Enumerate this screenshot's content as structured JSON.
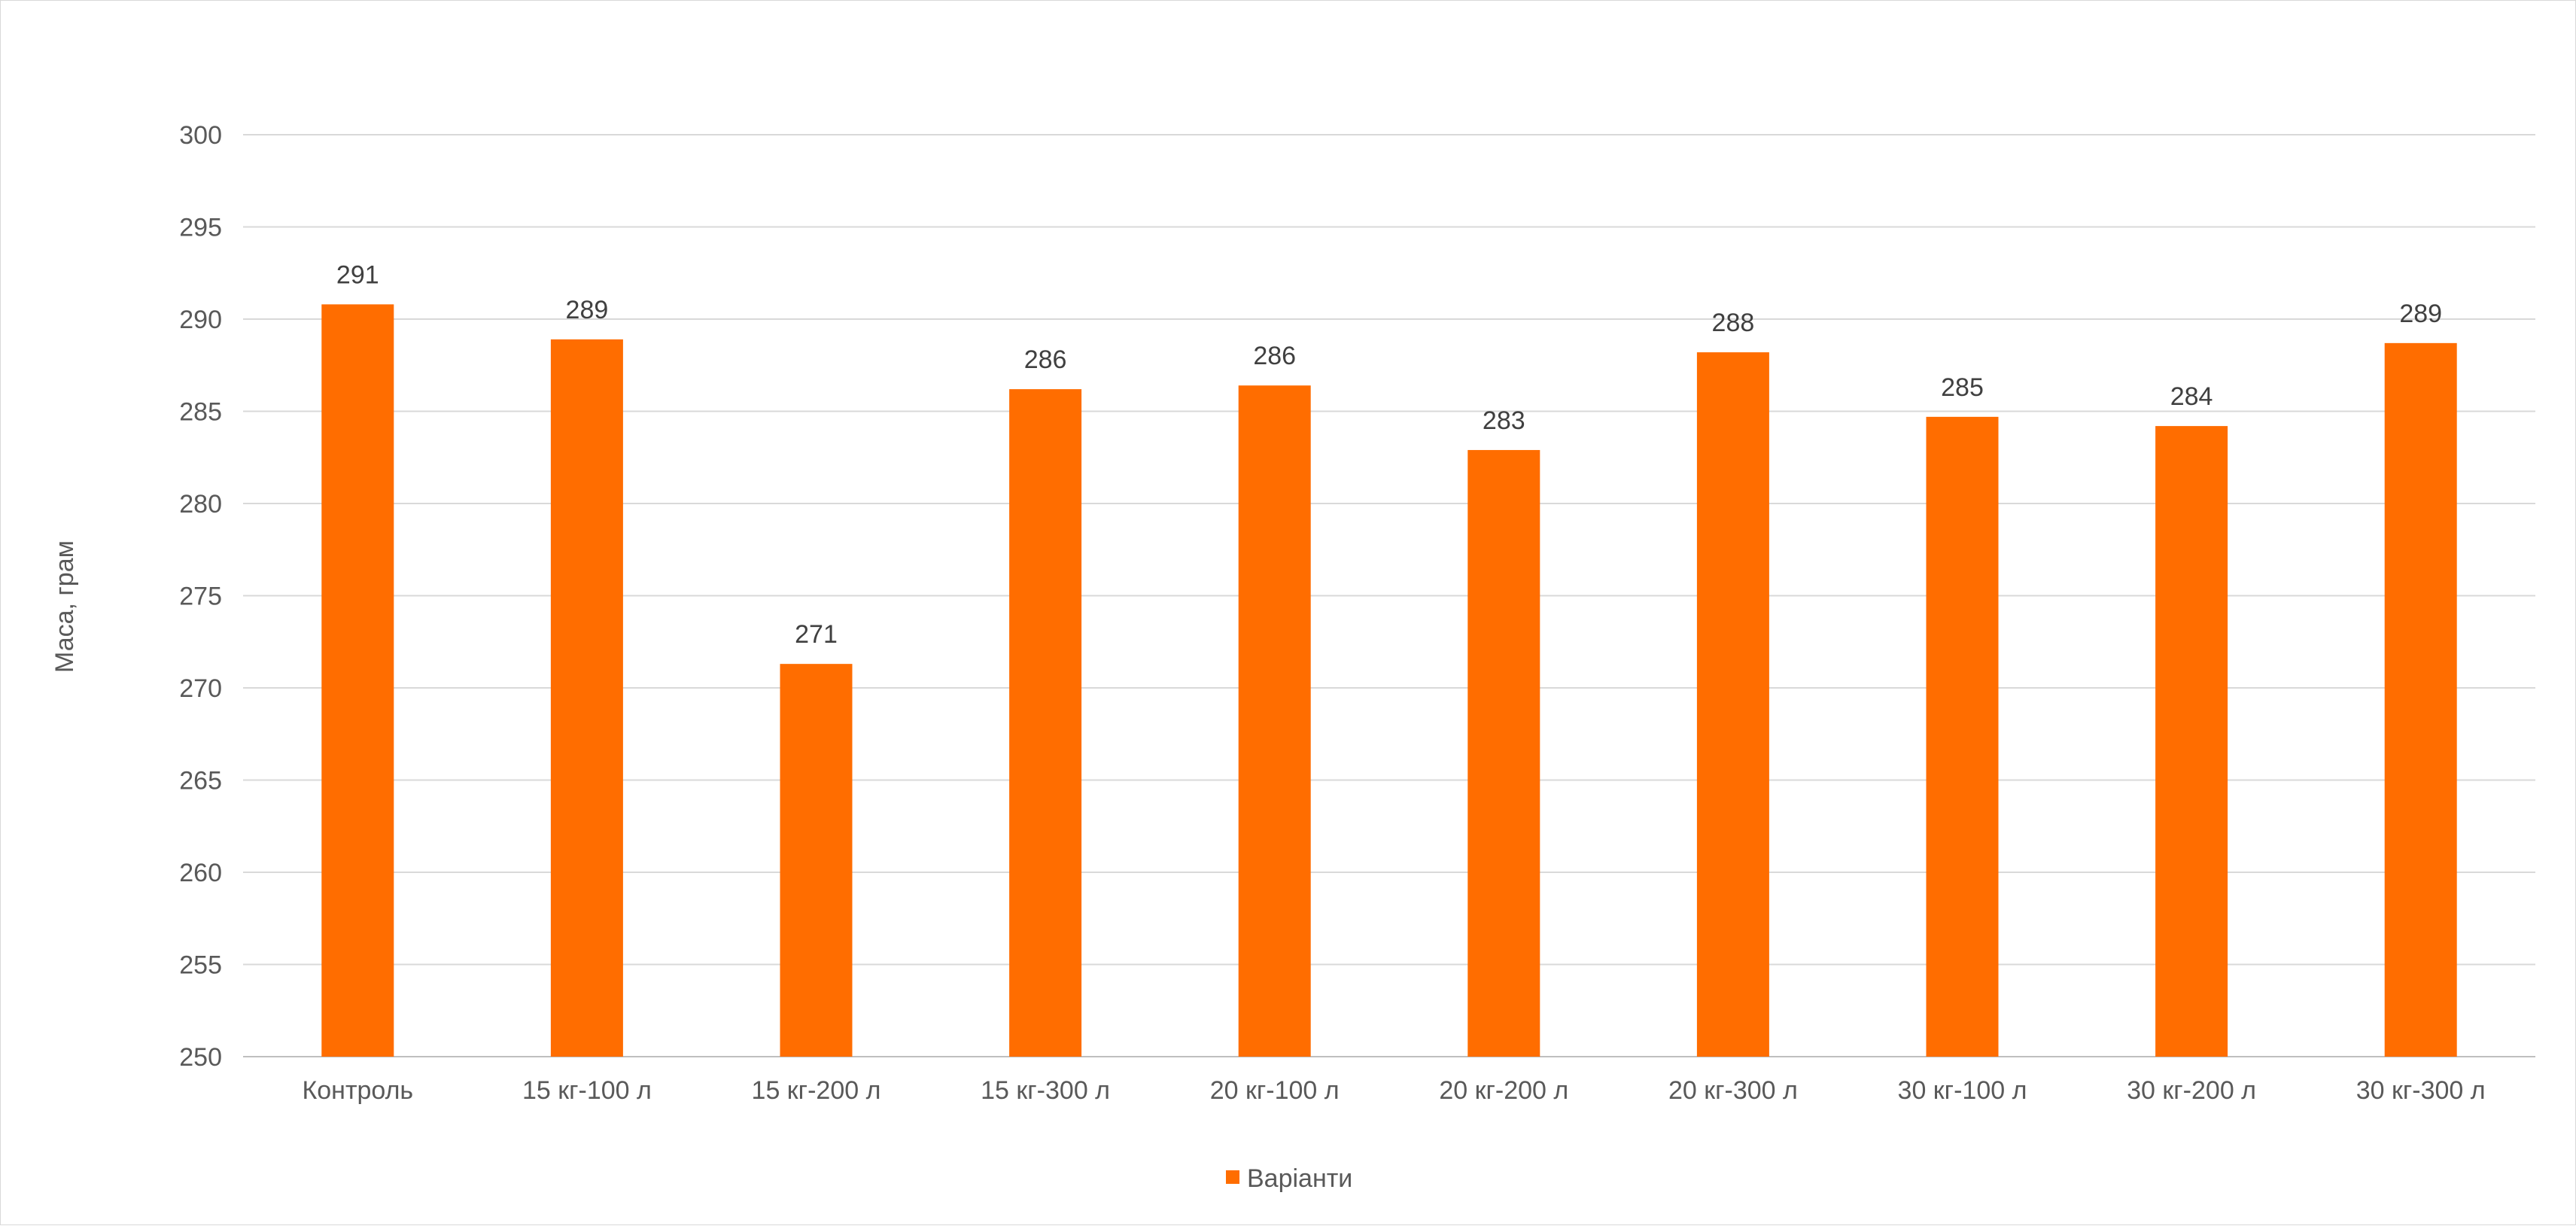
{
  "chart_data": {
    "type": "bar",
    "title": "",
    "xlabel": "",
    "ylabel": "Маса, грам",
    "ylim": [
      250,
      300
    ],
    "yticks": [
      250,
      255,
      260,
      265,
      270,
      275,
      280,
      285,
      290,
      295,
      300
    ],
    "grid": "horizontal",
    "legend_position": "bottom",
    "categories": [
      "Контроль",
      "15 кг-100 л",
      "15 кг-200 л",
      "15 кг-300 л",
      "20 кг-100 л",
      "20 кг-200 л",
      "20 кг-300 л",
      "30 кг-100 л",
      "30 кг-200 л",
      "30 кг-300 л"
    ],
    "series": [
      {
        "name": "Варіанти",
        "color": "#FF6D00",
        "values": [
          290.8,
          288.9,
          271.3,
          286.2,
          286.4,
          282.9,
          288.2,
          284.7,
          284.2,
          288.7
        ],
        "labels": [
          "291",
          "289",
          "271",
          "286",
          "286",
          "283",
          "288",
          "285",
          "284",
          "289"
        ]
      }
    ]
  }
}
